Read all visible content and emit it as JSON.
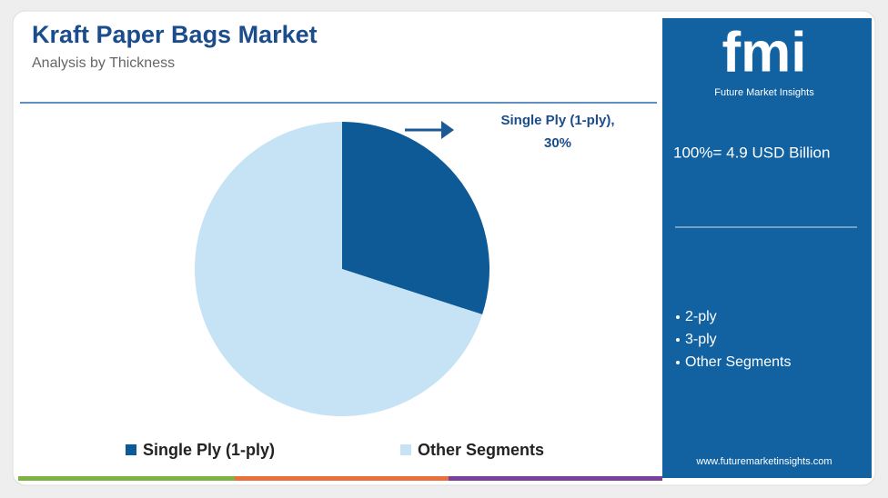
{
  "chart_data": {
    "type": "pie",
    "title": "Kraft Paper Bags Market",
    "subtitle": "Analysis by Thickness",
    "categories": [
      "Single Ply (1-ply)",
      "Other Segments"
    ],
    "values": [
      30,
      70
    ],
    "value_labels": [
      "30%",
      null
    ],
    "annotation": "Single Ply (1-ply),",
    "colors": [
      "#0e5a97",
      "#c6e3f5"
    ],
    "legend": "bottom"
  },
  "panel": {
    "logo": "fmi",
    "logo_caption": "Future Market Insights",
    "total": "100%= 4.9 USD Billion",
    "segments": [
      "2-ply",
      "3-ply",
      "Other Segments"
    ],
    "url": "www.futuremarketinsights.com"
  }
}
